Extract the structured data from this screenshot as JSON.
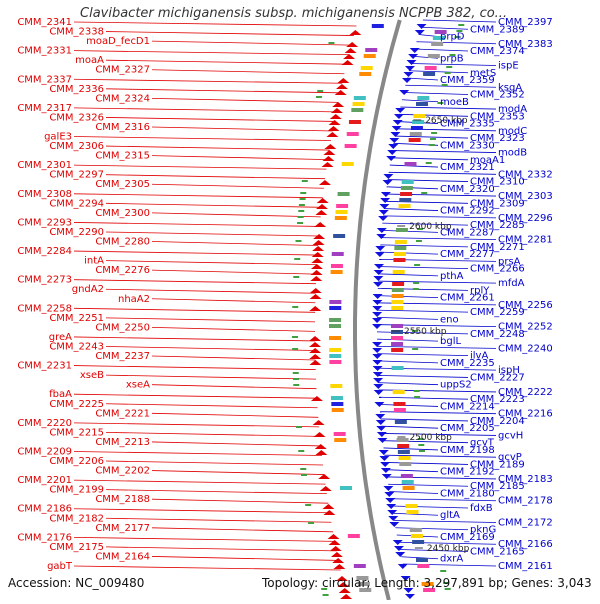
{
  "title": "Clavibacter michiganensis subsp. michiganensis NCPPB 382, co...",
  "footer": {
    "accession": "Accession: NC_009480",
    "summary": "Topology: circular; Length: 3,297,891 bp; Genes: 3,043"
  },
  "colors": {
    "left_labels": "#e00000",
    "right_labels": "#0000cc",
    "backbone": "#888888"
  },
  "ruler_ticks": [
    {
      "label": "2650 kbp"
    },
    {
      "label": "2600 kbp"
    },
    {
      "label": "2550 kbp"
    },
    {
      "label": "2500 kbp"
    },
    {
      "label": "2450 kbp"
    }
  ],
  "left_labels": [
    "CMM_2341",
    "CMM_2338",
    "moaD_fecD1",
    "CMM_2331",
    "moaA",
    "CMM_2327",
    "CMM_2337",
    "CMM_2336",
    "CMM_2324",
    "CMM_2317",
    "CMM_2326",
    "CMM_2316",
    "galE3",
    "CMM_2306",
    "CMM_2315",
    "CMM_2301",
    "CMM_2297",
    "CMM_2305",
    "CMM_2308",
    "CMM_2294",
    "CMM_2300",
    "CMM_2293",
    "CMM_2290",
    "CMM_2280",
    "CMM_2284",
    "intA",
    "CMM_2276",
    "CMM_2273",
    "gndA2",
    "nhaA2",
    "CMM_2258",
    "CMM_2251",
    "CMM_2250",
    "greA",
    "CMM_2243",
    "CMM_2237",
    "CMM_2231",
    "xseB",
    "xseA",
    "fbaA",
    "CMM_2225",
    "CMM_2221",
    "CMM_2220",
    "CMM_2215",
    "CMM_2213",
    "CMM_2209",
    "CMM_2206",
    "CMM_2202",
    "CMM_2201",
    "CMM_2199",
    "CMM_2188",
    "CMM_2186",
    "CMM_2182",
    "CMM_2177",
    "CMM_2176",
    "CMM_2175",
    "CMM_2164",
    "gabT"
  ],
  "right_labels": [
    "CMM_2397",
    "CMM_2389",
    "prpD",
    "CMM_2383",
    "CMM_2374",
    "prpB",
    "ispE",
    "metS",
    "CMM_2359",
    "ksgA",
    "CMM_2352",
    "moeB",
    "modA",
    "CMM_2353",
    "CMM_2335",
    "modC",
    "CMM_2323",
    "CMM_2330",
    "modB",
    "moaA1",
    "CMM_2321",
    "CMM_2332",
    "CMM_2310",
    "CMM_2320",
    "CMM_2303",
    "CMM_2309",
    "CMM_2292",
    "CMM_2296",
    "CMM_2285",
    "CMM_2287",
    "CMM_2281",
    "CMM_2271",
    "CMM_2277",
    "prsA",
    "CMM_2266",
    "pthA",
    "mfdA",
    "rplY",
    "CMM_2261",
    "CMM_2256",
    "CMM_2259",
    "eno",
    "CMM_2252",
    "CMM_2248",
    "bglL",
    "CMM_2240",
    "ilvA",
    "CMM_2235",
    "ispH",
    "CMM_2227",
    "uppS2",
    "CMM_2222",
    "CMM_2223",
    "CMM_2214",
    "CMM_2216",
    "CMM_2204",
    "CMM_2205",
    "gcvH",
    "gcvT",
    "CMM_2198",
    "gcvP",
    "CMM_2189",
    "CMM_2192",
    "CMM_2183",
    "CMM_2185",
    "CMM_2180",
    "CMM_2178",
    "fdxB",
    "gltA",
    "CMM_2172",
    "pknG",
    "CMM_2169",
    "CMM_2166",
    "CMM_2165",
    "dxrA",
    "CMM_2161"
  ]
}
